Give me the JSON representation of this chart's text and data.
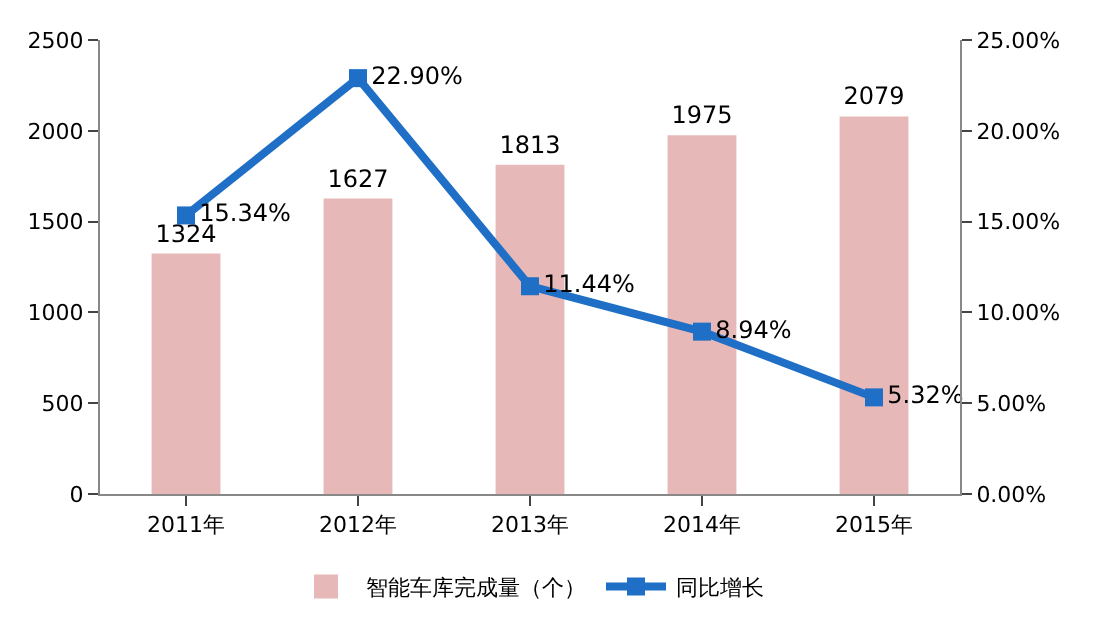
{
  "chart_data": {
    "type": "bar",
    "categories": [
      "2011年",
      "2012年",
      "2013年",
      "2014年",
      "2015年"
    ],
    "series": [
      {
        "name": "智能车库完成量（个）",
        "color": "#e6b9b8",
        "values": [
          1324,
          1627,
          1813,
          1975,
          2079
        ],
        "value_labels": [
          "1324",
          "1627",
          "1813",
          "1975",
          "2079"
        ]
      },
      {
        "name": "同比增长",
        "type": "line",
        "axis": "y2",
        "color": "#1f6fc6",
        "values": [
          15.34,
          22.9,
          11.44,
          8.94,
          5.32
        ],
        "value_labels": [
          "15.34%",
          "22.90%",
          "11.44%",
          "8.94%",
          "5.32%"
        ]
      }
    ],
    "ylim": [
      0,
      2500
    ],
    "yticks": [
      0,
      500,
      1000,
      1500,
      2000,
      2500
    ],
    "y2lim": [
      0,
      25
    ],
    "y2ticks": [
      {
        "value": 0,
        "label": "0.00%"
      },
      {
        "value": 5,
        "label": "5.00%"
      },
      {
        "value": 10,
        "label": "10.00%"
      },
      {
        "value": 15,
        "label": "15.00%"
      },
      {
        "value": 20,
        "label": "20.00%"
      },
      {
        "value": 25,
        "label": "25.00%"
      }
    ],
    "marker": "square",
    "grid": false,
    "legend": "bottom"
  }
}
